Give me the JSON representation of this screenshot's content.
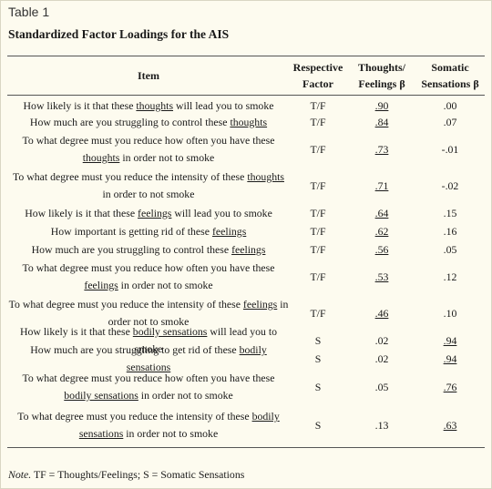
{
  "table_label": "Table 1",
  "table_title": "Standardized Factor Loadings for the AIS",
  "headers": {
    "item": "Item",
    "factor_line1": "Respective",
    "factor_line2": "Factor",
    "tf_line1": "Thoughts/",
    "tf_line2": "Feelings β",
    "som_line1": "Somatic",
    "som_line2": "Sensations β"
  },
  "rows": [
    {
      "pre": "How likely is it that these ",
      "ul": "thoughts",
      "post": " will lead you to smoke",
      "factor": "T/F",
      "tf": ".90",
      "som": ".00",
      "tf_ul": true,
      "som_ul": false
    },
    {
      "pre": "How much are you struggling to control these ",
      "ul": "thoughts",
      "post": "",
      "factor": "T/F",
      "tf": ".84",
      "som": ".07",
      "tf_ul": true,
      "som_ul": false
    },
    {
      "pre": "To what degree must you reduce how often you have these ",
      "ul": "thoughts",
      "post": " in order not to smoke",
      "factor": "T/F",
      "tf": ".73",
      "som": "-.01",
      "tf_ul": true,
      "som_ul": false
    },
    {
      "pre": "To what degree must you reduce the intensity of these ",
      "ul": "thoughts",
      "post": " in order to not smoke",
      "factor": "T/F",
      "tf": ".71",
      "som": "-.02",
      "tf_ul": true,
      "som_ul": false
    },
    {
      "pre": "How likely is it that these ",
      "ul": "feelings",
      "post": " will lead you to smoke",
      "factor": "T/F",
      "tf": ".64",
      "som": ".15",
      "tf_ul": true,
      "som_ul": false
    },
    {
      "pre": "How important is getting rid of these ",
      "ul": "feelings",
      "post": "",
      "factor": "T/F",
      "tf": ".62",
      "som": ".16",
      "tf_ul": true,
      "som_ul": false
    },
    {
      "pre": "How much are you struggling to control these ",
      "ul": "feelings",
      "post": "",
      "factor": "T/F",
      "tf": ".56",
      "som": ".05",
      "tf_ul": true,
      "som_ul": false
    },
    {
      "pre": "To what degree must you reduce how often you have these ",
      "ul": "feelings",
      "post": " in order not to smoke",
      "factor": "T/F",
      "tf": ".53",
      "som": ".12",
      "tf_ul": true,
      "som_ul": false
    },
    {
      "pre": "To what degree must you reduce the intensity of these ",
      "ul": "feelings",
      "post": " in order not to smoke",
      "factor": "T/F",
      "tf": ".46",
      "som": ".10",
      "tf_ul": true,
      "som_ul": false
    },
    {
      "pre": "How likely is it that these ",
      "ul": "bodily sensations",
      "post": " will lead you to smoke",
      "factor": "S",
      "tf": ".02",
      "som": ".94",
      "tf_ul": false,
      "som_ul": true
    },
    {
      "pre": "How much are you struggling to get rid of these ",
      "ul": "bodily sensations",
      "post": "",
      "factor": "S",
      "tf": ".02",
      "som": ".94",
      "tf_ul": false,
      "som_ul": true
    },
    {
      "pre": "To what degree must you reduce how often you have these ",
      "ul": "bodily sensations",
      "post": " in order not to smoke",
      "factor": "S",
      "tf": ".05",
      "som": ".76",
      "tf_ul": false,
      "som_ul": true
    },
    {
      "pre": "To what degree must you reduce the intensity of these ",
      "ul": "bodily sensations",
      "post": " in order not to smoke",
      "factor": "S",
      "tf": ".13",
      "som": ".63",
      "tf_ul": false,
      "som_ul": true
    }
  ],
  "note": {
    "label": "Note.",
    "text": " TF = Thoughts/Feelings; S = Somatic Sensations"
  }
}
